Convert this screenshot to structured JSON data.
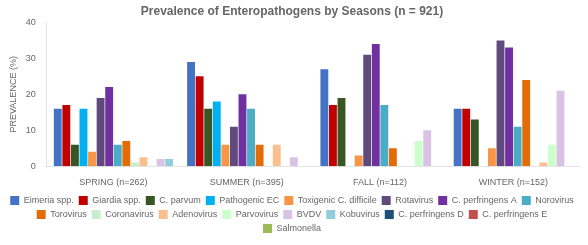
{
  "chart_data": {
    "type": "bar",
    "title": "Prevalence of Enteropathogens by Seasons (n = 921)",
    "ylabel": "PREVALENCE (%)",
    "categories": [
      "SPRING (n=262)",
      "SUMMER (n=395)",
      "FALL (n=112)",
      "WINTER (n=152)"
    ],
    "series": [
      {
        "name": "Eimeria spp.",
        "color": "#4472C4",
        "values": [
          16,
          29,
          27,
          16
        ]
      },
      {
        "name": "Giardia spp.",
        "color": "#C00000",
        "values": [
          17,
          25,
          17,
          16
        ]
      },
      {
        "name": "C. parvum",
        "color": "#375623",
        "values": [
          6,
          16,
          19,
          13
        ]
      },
      {
        "name": "Pathogenic EC",
        "color": "#00B0F0",
        "values": [
          16,
          18,
          0,
          0
        ]
      },
      {
        "name": "Toxigenic C. difficile",
        "color": "#F79646",
        "values": [
          4,
          6,
          3,
          5
        ]
      },
      {
        "name": "Rotavirus",
        "color": "#604A7B",
        "values": [
          19,
          11,
          31,
          35
        ]
      },
      {
        "name": "C. perfringens A",
        "color": "#7030A0",
        "values": [
          22,
          20,
          34,
          33
        ]
      },
      {
        "name": "Norovirus",
        "color": "#4BACC6",
        "values": [
          6,
          16,
          17,
          11
        ]
      },
      {
        "name": "Torovirus",
        "color": "#E36C09",
        "values": [
          7,
          6,
          5,
          24
        ]
      },
      {
        "name": "Coronavirus",
        "color": "#C6EFCE",
        "values": [
          1,
          0,
          0,
          0
        ]
      },
      {
        "name": "Adenovirus",
        "color": "#FABF8F",
        "values": [
          2.5,
          6,
          0,
          1
        ]
      },
      {
        "name": "Parvovirus",
        "color": "#CCFFCC",
        "values": [
          0,
          0,
          7,
          6
        ]
      },
      {
        "name": "BVDV",
        "color": "#D9C3E4",
        "values": [
          2,
          2.5,
          10,
          21
        ]
      },
      {
        "name": "Kobuvirus",
        "color": "#92CDDC",
        "values": [
          2,
          0,
          0,
          0
        ]
      },
      {
        "name": "C. perfringens D",
        "color": "#1F4E79",
        "values": [
          null,
          null,
          null,
          null
        ]
      },
      {
        "name": "C. perfringens E",
        "color": "#C0504D",
        "values": [
          null,
          null,
          null,
          null
        ]
      },
      {
        "name": "Salmonella",
        "color": "#9BBB59",
        "values": [
          null,
          null,
          null,
          null
        ]
      }
    ],
    "ylim": [
      0,
      40
    ],
    "yticks": [
      0,
      10,
      20,
      30,
      40
    ],
    "grid": false,
    "legend": "bottom"
  }
}
